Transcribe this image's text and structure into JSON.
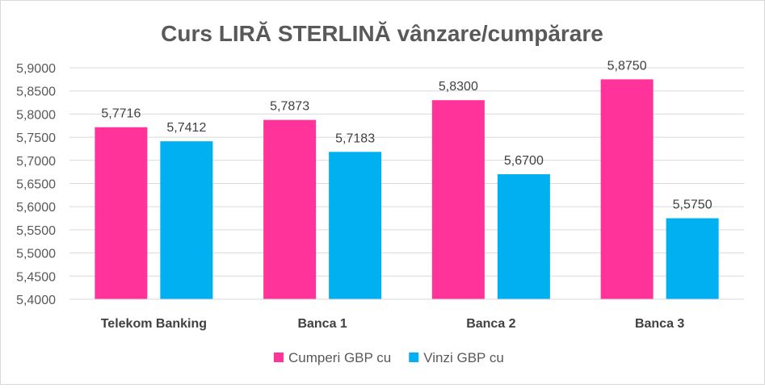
{
  "chart_data": {
    "type": "bar",
    "title": "Curs LIRĂ STERLINĂ vânzare/cumpărare",
    "xlabel": "",
    "ylabel": "",
    "categories": [
      "Telekom Banking",
      "Banca 1",
      "Banca 2",
      "Banca 3"
    ],
    "series": [
      {
        "name": "Cumperi GBP cu",
        "color": "#ff3399",
        "values": [
          5.7716,
          5.7873,
          5.83,
          5.875
        ],
        "labels": [
          "5,7716",
          "5,7873",
          "5,8300",
          "5,8750"
        ]
      },
      {
        "name": "Vinzi GBP cu",
        "color": "#00b0f0",
        "values": [
          5.7412,
          5.7183,
          5.67,
          5.575
        ],
        "labels": [
          "5,7412",
          "5,7183",
          "5,6700",
          "5,5750"
        ]
      }
    ],
    "ylim": [
      5.4,
      5.9
    ],
    "yticks": [
      5.4,
      5.45,
      5.5,
      5.55,
      5.6,
      5.65,
      5.7,
      5.75,
      5.8,
      5.85,
      5.9
    ],
    "ytick_labels": [
      "5,4000",
      "5,4500",
      "5,5000",
      "5,5500",
      "5,6000",
      "5,6500",
      "5,7000",
      "5,7500",
      "5,8000",
      "5,8500",
      "5,9000"
    ],
    "grid": true,
    "legend_position": "bottom"
  }
}
